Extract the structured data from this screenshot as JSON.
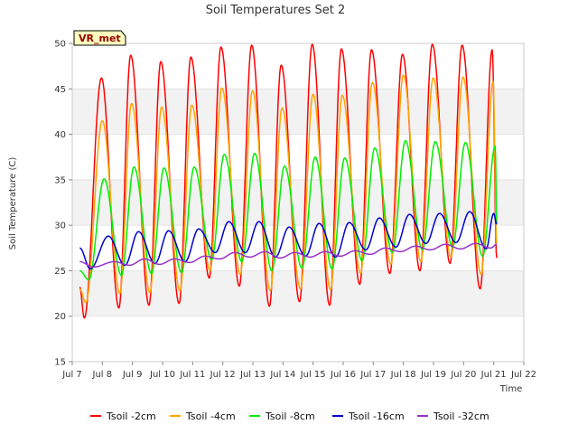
{
  "chart_data": {
    "type": "line",
    "title": "Soil Temperatures Set 2",
    "xlabel": "Time",
    "ylabel": "Soil Temperature (C)",
    "site_label": "VR_met",
    "xlim": [
      7,
      22
    ],
    "ylim": [
      15,
      50
    ],
    "x_ticks": [
      {
        "value": 7,
        "label": "Jul 7"
      },
      {
        "value": 8,
        "label": "Jul 8"
      },
      {
        "value": 9,
        "label": "Jul 9"
      },
      {
        "value": 10,
        "label": "Jul 10"
      },
      {
        "value": 11,
        "label": "Jul 11"
      },
      {
        "value": 12,
        "label": "Jul 12"
      },
      {
        "value": 13,
        "label": "Jul 13"
      },
      {
        "value": 14,
        "label": "Jul 14"
      },
      {
        "value": 15,
        "label": "Jul 15"
      },
      {
        "value": 16,
        "label": "Jul 16"
      },
      {
        "value": 17,
        "label": "Jul 17"
      },
      {
        "value": 18,
        "label": "Jul 18"
      },
      {
        "value": 19,
        "label": "Jul 19"
      },
      {
        "value": 20,
        "label": "Jul 20"
      },
      {
        "value": 21,
        "label": "Jul 21"
      },
      {
        "value": 22,
        "label": "Jul 22"
      }
    ],
    "y_ticks": [
      15,
      20,
      25,
      30,
      35,
      40,
      45,
      50
    ],
    "shaded_bands": [
      [
        20,
        25
      ],
      [
        30,
        35
      ],
      [
        40,
        45
      ]
    ],
    "grid": true,
    "legend_position": "bottom",
    "series": [
      {
        "name": "Tsoil -2cm",
        "color": "#ff0000",
        "peak_times": [
          7.97,
          8.94,
          9.94,
          10.94,
          11.94,
          12.96,
          13.94,
          14.97,
          15.94,
          16.94,
          17.97,
          18.96,
          19.95,
          20.95
        ],
        "peaks": [
          46.2,
          48.7,
          48.0,
          48.5,
          49.6,
          49.8,
          47.6,
          49.9,
          49.4,
          49.3,
          48.8,
          49.9,
          49.8,
          49.3
        ],
        "trough_times": [
          7.4,
          8.55,
          9.55,
          10.55,
          11.55,
          12.55,
          13.55,
          14.55,
          15.55,
          16.55,
          17.55,
          18.55,
          19.55,
          20.55
        ],
        "troughs": [
          19.8,
          20.9,
          21.2,
          21.4,
          24.2,
          23.3,
          21.1,
          21.6,
          21.2,
          23.5,
          24.7,
          25.0,
          25.8,
          23.0
        ],
        "x_start": 7.25,
        "y_start": 23.2,
        "x_end": 21.1,
        "y_end": 26.4
      },
      {
        "name": "Tsoil -4cm",
        "color": "#ffa500",
        "peak_times": [
          8.0,
          8.97,
          9.97,
          10.97,
          11.97,
          12.99,
          13.97,
          15.0,
          15.97,
          16.97,
          18.0,
          18.99,
          19.98,
          20.98
        ],
        "peaks": [
          41.5,
          43.4,
          43.0,
          43.2,
          45.1,
          44.8,
          42.9,
          44.4,
          44.3,
          45.7,
          46.5,
          46.2,
          46.3,
          45.8
        ],
        "trough_times": [
          7.45,
          8.58,
          9.58,
          10.58,
          11.58,
          12.58,
          13.58,
          14.58,
          15.58,
          16.58,
          17.58,
          18.58,
          19.58,
          20.58
        ],
        "troughs": [
          21.5,
          22.5,
          22.6,
          22.8,
          25.0,
          24.6,
          22.8,
          23.0,
          22.9,
          24.7,
          25.7,
          26.0,
          26.5,
          24.6
        ],
        "x_start": 7.25,
        "y_start": 23.0,
        "x_end": 21.1,
        "y_end": 28.0
      },
      {
        "name": "Tsoil -8cm",
        "color": "#00ee00",
        "peak_times": [
          8.06,
          9.05,
          10.05,
          11.05,
          12.05,
          13.06,
          14.05,
          15.07,
          16.05,
          17.05,
          18.07,
          19.06,
          20.06,
          21.05
        ],
        "peaks": [
          35.1,
          36.4,
          36.3,
          36.4,
          37.8,
          37.9,
          36.5,
          37.5,
          37.4,
          38.5,
          39.3,
          39.2,
          39.1,
          38.7
        ],
        "trough_times": [
          7.55,
          8.63,
          9.63,
          10.63,
          11.63,
          12.63,
          13.63,
          14.63,
          15.63,
          16.63,
          17.63,
          18.63,
          19.63,
          20.63
        ],
        "troughs": [
          24.0,
          24.5,
          24.7,
          24.8,
          26.2,
          26.0,
          25.0,
          25.3,
          25.2,
          26.1,
          27.0,
          27.3,
          27.6,
          26.6
        ],
        "x_start": 7.25,
        "y_start": 25.0,
        "x_end": 21.1,
        "y_end": 30.2
      },
      {
        "name": "Tsoil -16cm",
        "color": "#0000cc",
        "peak_times": [
          8.2,
          9.2,
          10.2,
          11.2,
          12.2,
          13.2,
          14.2,
          15.2,
          16.2,
          17.2,
          18.2,
          19.2,
          20.2,
          21.0
        ],
        "peaks": [
          28.8,
          29.3,
          29.4,
          29.6,
          30.4,
          30.4,
          29.8,
          30.2,
          30.3,
          30.8,
          31.2,
          31.3,
          31.5,
          31.3
        ],
        "trough_times": [
          7.6,
          8.75,
          9.75,
          10.75,
          11.75,
          12.75,
          13.75,
          14.75,
          15.75,
          16.75,
          17.75,
          18.75,
          19.75,
          20.75
        ],
        "troughs": [
          25.2,
          25.6,
          25.8,
          26.0,
          27.0,
          27.0,
          26.5,
          26.6,
          26.5,
          27.3,
          27.6,
          28.0,
          28.1,
          27.4
        ],
        "x_start": 7.25,
        "y_start": 27.5,
        "x_end": 21.1,
        "y_end": 30.1
      },
      {
        "name": "Tsoil -32cm",
        "color": "#9932cc",
        "peak_times": [
          8.4,
          9.4,
          10.4,
          11.4,
          12.4,
          13.4,
          14.4,
          15.4,
          16.4,
          17.4,
          18.4,
          19.4,
          20.4
        ],
        "peaks": [
          26.0,
          26.3,
          26.3,
          26.6,
          27.0,
          27.1,
          27.0,
          27.1,
          27.2,
          27.5,
          27.7,
          27.9,
          28.0
        ],
        "trough_times": [
          7.7,
          8.9,
          9.9,
          10.9,
          11.9,
          12.9,
          13.9,
          14.9,
          15.9,
          16.9,
          17.9,
          18.9,
          19.9,
          20.9
        ],
        "troughs": [
          25.4,
          25.6,
          25.7,
          25.9,
          26.3,
          26.5,
          26.4,
          26.5,
          26.6,
          26.8,
          27.1,
          27.3,
          27.4,
          27.5
        ],
        "x_start": 7.25,
        "y_start": 26.0,
        "x_end": 21.1,
        "y_end": 27.9
      }
    ]
  }
}
